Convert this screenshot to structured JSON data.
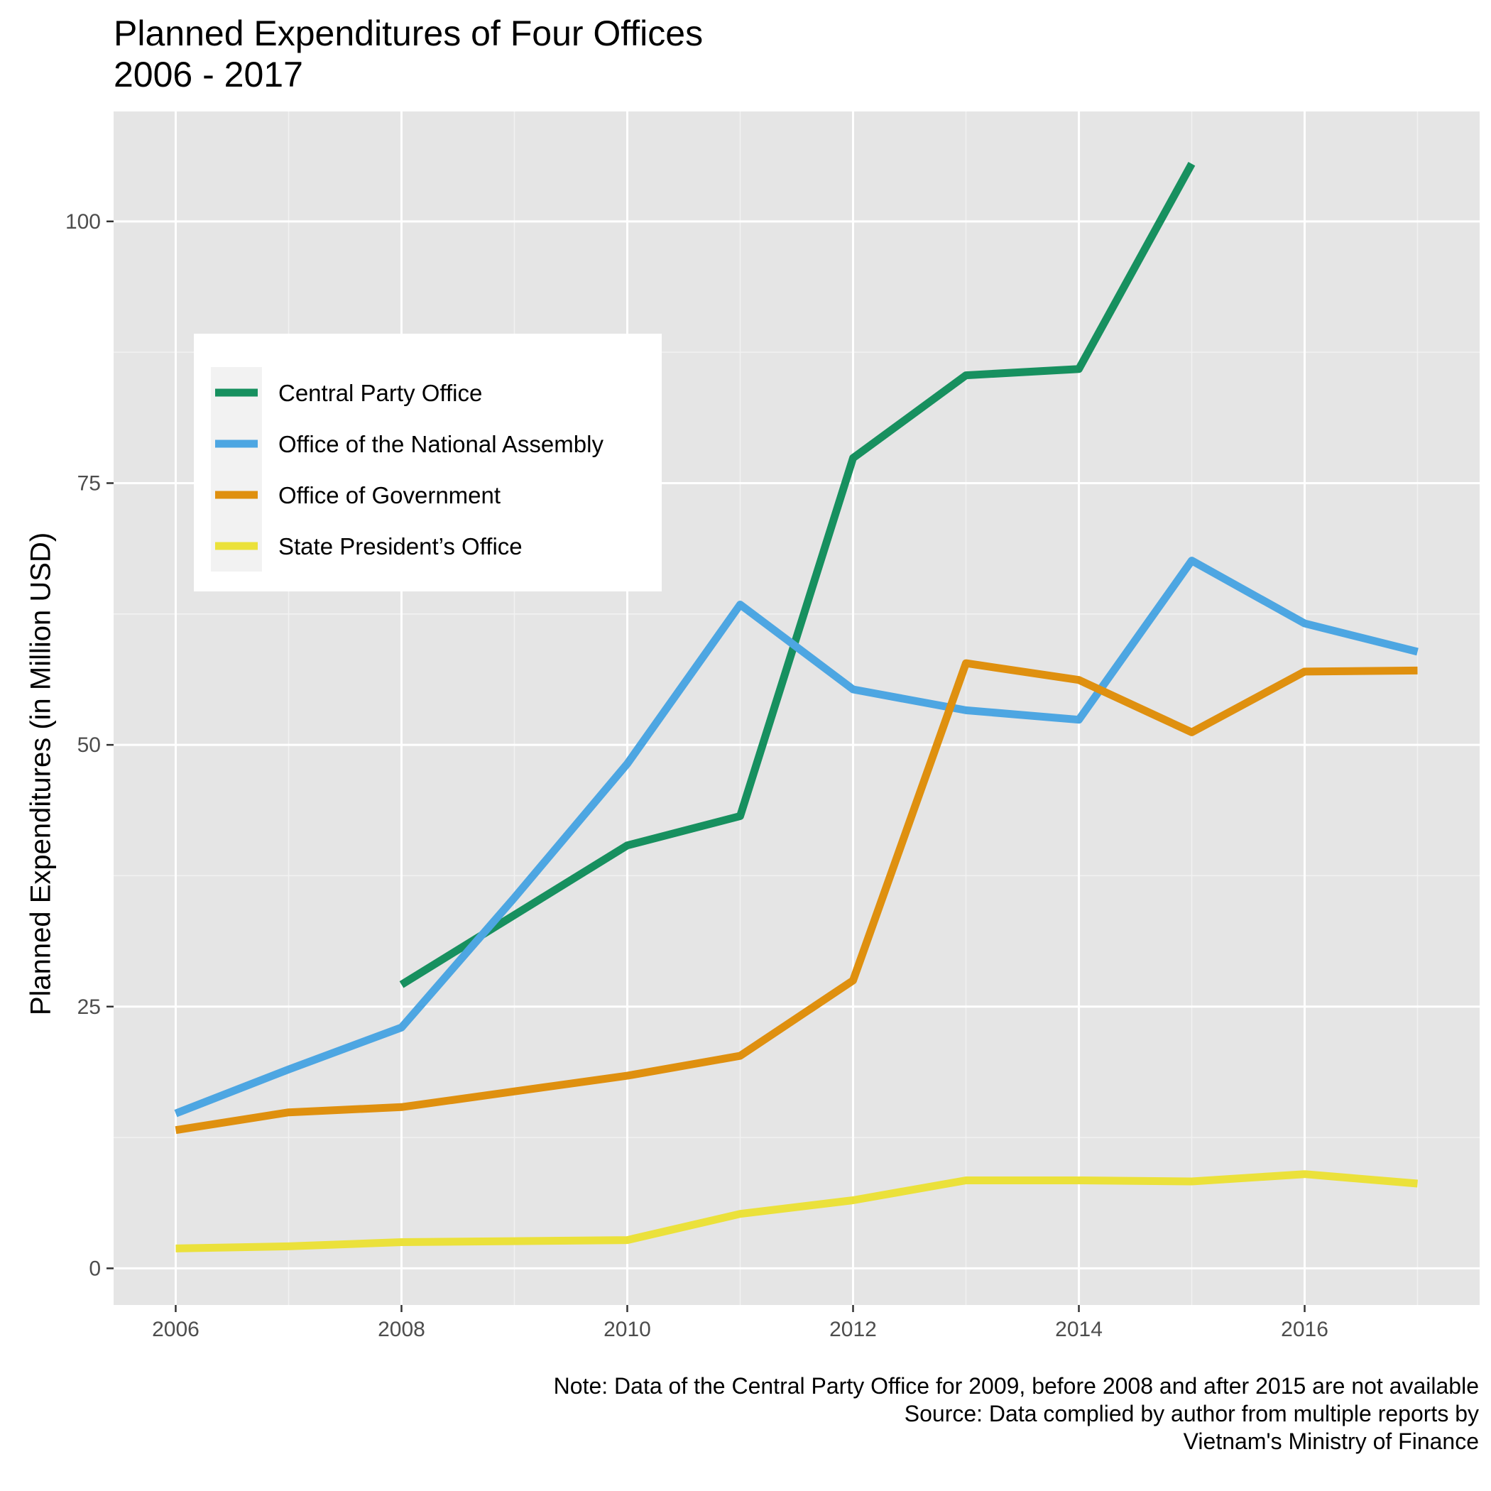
{
  "title_line1": "Planned Expenditures of Four Offices",
  "title_line2": "2006 - 2017",
  "caption": [
    "Note: Data of the Central Party Office for 2009, before 2008 and after 2015 are not available",
    "Source: Data complied by author from multiple reports by",
    "Vietnam's Ministry of Finance"
  ],
  "chart_data": {
    "type": "line",
    "title": "Planned Expenditures of Four Offices\n2006 - 2017",
    "xlabel": "",
    "ylabel": "Planned Expenditures (in Million USD)",
    "xlim": [
      2005.45,
      2017.55
    ],
    "ylim": [
      -3.5,
      110.5
    ],
    "x_ticks": [
      2006,
      2008,
      2010,
      2012,
      2014,
      2016
    ],
    "y_ticks": [
      0,
      25,
      50,
      75,
      100
    ],
    "x_tick_labels": [
      "2006",
      "2008",
      "2010",
      "2012",
      "2014",
      "2016"
    ],
    "y_tick_labels": [
      "0",
      "25",
      "50",
      "75",
      "100"
    ],
    "grid": true,
    "legend_position": "top-left inside",
    "series": [
      {
        "name": "Central Party Office",
        "color": "#17905f",
        "x": [
          2008,
          2010,
          2011,
          2012,
          2013,
          2014,
          2015
        ],
        "y": [
          27.1,
          40.4,
          43.2,
          77.4,
          85.3,
          85.9,
          105.5
        ]
      },
      {
        "name": "Office of the National Assembly",
        "color": "#4da6e2",
        "x": [
          2006,
          2007,
          2008,
          2009,
          2010,
          2011,
          2012,
          2013,
          2014,
          2015,
          2016,
          2017
        ],
        "y": [
          14.8,
          19.0,
          23.0,
          35.4,
          48.2,
          63.4,
          55.3,
          53.3,
          52.4,
          67.6,
          61.6,
          58.9
        ]
      },
      {
        "name": "Office of Government",
        "color": "#df900f",
        "x": [
          2006,
          2007,
          2008,
          2009,
          2010,
          2011,
          2012,
          2013,
          2014,
          2015,
          2016,
          2017
        ],
        "y": [
          13.2,
          14.9,
          15.4,
          16.9,
          18.4,
          20.3,
          27.5,
          57.8,
          56.2,
          51.2,
          57.0,
          57.1
        ]
      },
      {
        "name": "State President’s Office",
        "color": "#ebe13b",
        "x": [
          2006,
          2007,
          2008,
          2009,
          2010,
          2011,
          2012,
          2013,
          2014,
          2015,
          2016,
          2017
        ],
        "y": [
          1.9,
          2.1,
          2.5,
          2.6,
          2.7,
          5.2,
          6.5,
          8.4,
          8.4,
          8.3,
          9.0,
          8.1
        ]
      }
    ]
  }
}
